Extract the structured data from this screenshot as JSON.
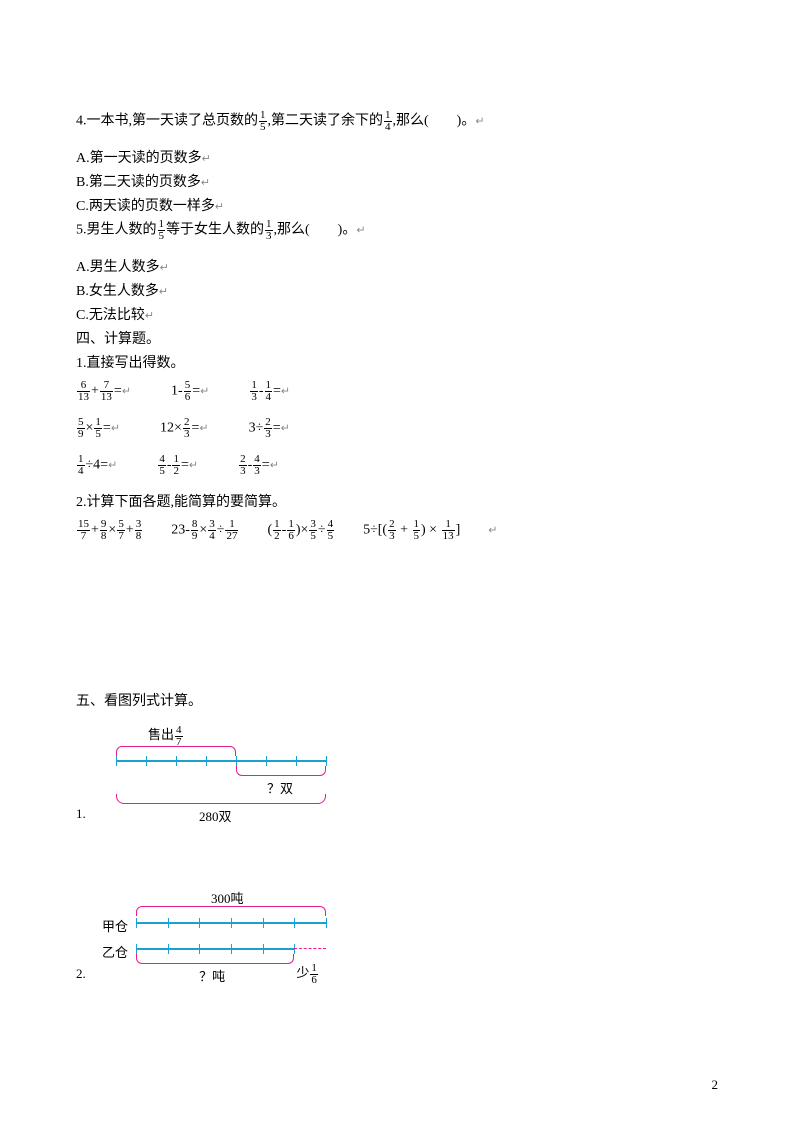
{
  "q4": {
    "prefix": "4.一本书,第一天读了总页数的",
    "f1": {
      "num": "1",
      "den": "5"
    },
    "mid": ",第二天读了余下的",
    "f2": {
      "num": "1",
      "den": "4"
    },
    "suffix": ",那么(　　)。",
    "optA": "A.第一天读的页数多",
    "optB": "B.第二天读的页数多",
    "optC": "C.两天读的页数一样多"
  },
  "q5": {
    "prefix": "5.男生人数的",
    "f1": {
      "num": "1",
      "den": "5"
    },
    "mid": "等于女生人数的",
    "f2": {
      "num": "1",
      "den": "3"
    },
    "suffix": ",那么(　　)。",
    "optA": "A.男生人数多",
    "optB": "B.女生人数多",
    "optC": "C.无法比较"
  },
  "section4": "四、计算题。",
  "s4_1": "1.直接写出得数。",
  "s4_2": "2.计算下面各题,能简算的要简算。",
  "calc1": {
    "r1": [
      {
        "parts": [
          {
            "f": {
              "n": "6",
              "d": "13"
            }
          },
          {
            "t": "+"
          },
          {
            "f": {
              "n": "7",
              "d": "13"
            }
          },
          {
            "t": "="
          }
        ]
      },
      {
        "parts": [
          {
            "t": "1-"
          },
          {
            "f": {
              "n": "5",
              "d": "6"
            }
          },
          {
            "t": "="
          }
        ]
      },
      {
        "parts": [
          {
            "f": {
              "n": "1",
              "d": "3"
            }
          },
          {
            "t": "-"
          },
          {
            "f": {
              "n": "1",
              "d": "4"
            }
          },
          {
            "t": "="
          }
        ]
      }
    ],
    "r2": [
      {
        "parts": [
          {
            "f": {
              "n": "5",
              "d": "9"
            }
          },
          {
            "t": "×"
          },
          {
            "f": {
              "n": "1",
              "d": "5"
            }
          },
          {
            "t": "="
          }
        ]
      },
      {
        "parts": [
          {
            "t": "12×"
          },
          {
            "f": {
              "n": "2",
              "d": "3"
            }
          },
          {
            "t": "="
          }
        ]
      },
      {
        "parts": [
          {
            "t": "3÷"
          },
          {
            "f": {
              "n": "2",
              "d": "3"
            }
          },
          {
            "t": "="
          }
        ]
      }
    ],
    "r3": [
      {
        "parts": [
          {
            "f": {
              "n": "1",
              "d": "4"
            }
          },
          {
            "t": "÷4="
          }
        ]
      },
      {
        "parts": [
          {
            "f": {
              "n": "4",
              "d": "5"
            }
          },
          {
            "t": "-"
          },
          {
            "f": {
              "n": "1",
              "d": "2"
            }
          },
          {
            "t": "="
          }
        ]
      },
      {
        "parts": [
          {
            "f": {
              "n": "2",
              "d": "3"
            }
          },
          {
            "t": "-"
          },
          {
            "f": {
              "n": "4",
              "d": "3"
            }
          },
          {
            "t": "="
          }
        ]
      }
    ]
  },
  "calc2": [
    {
      "parts": [
        {
          "f": {
            "n": "15",
            "d": "7"
          }
        },
        {
          "t": "+"
        },
        {
          "f": {
            "n": "9",
            "d": "8"
          }
        },
        {
          "t": "×"
        },
        {
          "f": {
            "n": "5",
            "d": "7"
          }
        },
        {
          "t": "+"
        },
        {
          "f": {
            "n": "3",
            "d": "8"
          }
        }
      ]
    },
    {
      "parts": [
        {
          "t": "23-"
        },
        {
          "f": {
            "n": "8",
            "d": "9"
          }
        },
        {
          "t": "×"
        },
        {
          "f": {
            "n": "3",
            "d": "4"
          }
        },
        {
          "t": "÷"
        },
        {
          "f": {
            "n": "1",
            "d": "27"
          }
        }
      ]
    },
    {
      "parts": [
        {
          "t": "("
        },
        {
          "f": {
            "n": "1",
            "d": "2"
          }
        },
        {
          "t": "-"
        },
        {
          "f": {
            "n": "1",
            "d": "6"
          }
        },
        {
          "t": ")×"
        },
        {
          "f": {
            "n": "3",
            "d": "5"
          }
        },
        {
          "t": "÷"
        },
        {
          "f": {
            "n": "4",
            "d": "5"
          }
        }
      ]
    },
    {
      "parts": [
        {
          "t": "5÷[("
        },
        {
          "f": {
            "n": "2",
            "d": "3"
          }
        },
        {
          "t": " + "
        },
        {
          "f": {
            "n": "1",
            "d": "5"
          }
        },
        {
          "t": ") × "
        },
        {
          "f": {
            "n": "1",
            "d": "13"
          }
        },
        {
          "t": "]"
        }
      ]
    }
  ],
  "section5": "五、看图列式计算。",
  "d1": {
    "sold_label": "售出",
    "sold_frac": {
      "num": "4",
      "den": "7"
    },
    "q": "？双",
    "total": "280双",
    "num": "1.",
    "ticks": 7,
    "colors": {
      "pink": "#e91e8c",
      "blue": "#1ca0d4"
    }
  },
  "d2": {
    "top": "300吨",
    "left1": "甲仓",
    "left2": "乙仓",
    "q": "？吨",
    "less": "少",
    "less_frac": {
      "num": "1",
      "den": "6"
    },
    "num": "2.",
    "ticks": 6,
    "colors": {
      "pink": "#e91e8c",
      "blue": "#1ca0d4"
    }
  },
  "page": "2"
}
